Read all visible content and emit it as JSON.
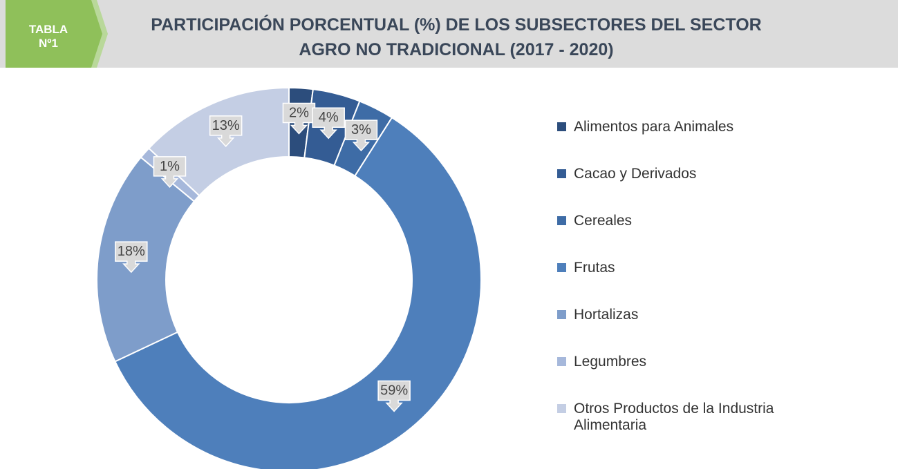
{
  "chart_data": {
    "type": "donut",
    "tag": [
      "TABLA",
      "Nº1"
    ],
    "title": [
      "PARTICIPACIÓN PORCENTUAL (%) DE LOS SUBSECTORES DEL SECTOR",
      "AGRO NO TRADICIONAL (2017 - 2020)"
    ],
    "categories": [
      "Alimentos para Animales",
      "Cacao y Derivados",
      "Cereales",
      "Frutas",
      "Hortalizas",
      "Legumbres",
      "Otros Productos de la Industria Alimentaria"
    ],
    "values": [
      2,
      4,
      3,
      59,
      18,
      1,
      13
    ],
    "value_labels": [
      "2%",
      "4%",
      "3%",
      "59%",
      "18%",
      "1%",
      "13%"
    ],
    "colors": [
      "#2c4d7c",
      "#345c94",
      "#3e6ca6",
      "#4e7fbb",
      "#7e9dca",
      "#a6b8db",
      "#c4cee4"
    ],
    "legend": "right"
  }
}
